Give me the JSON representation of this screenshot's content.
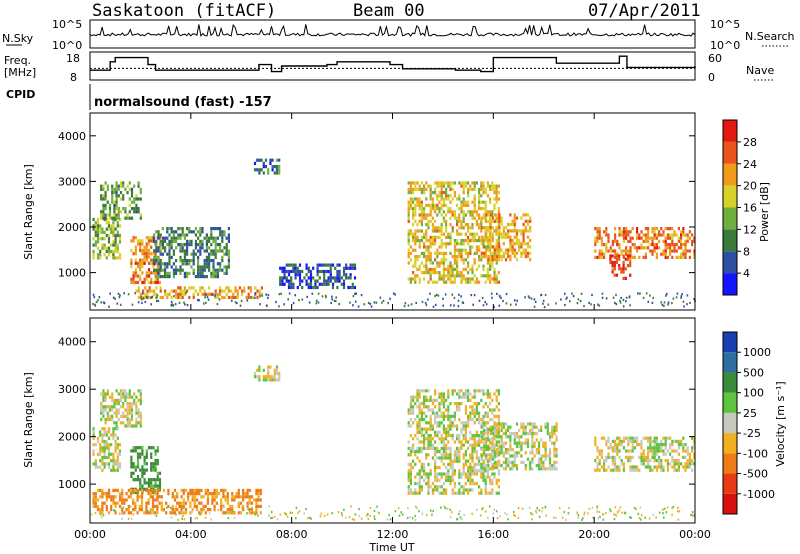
{
  "header": {
    "station": "Saskatoon (fitACF)",
    "beam": "Beam 00",
    "date": "07/Apr/2011"
  },
  "noise_panel": {
    "left_label": "N.Sky",
    "right_label": "N.Search",
    "left_ticks": [
      "10^5",
      "10^0"
    ],
    "right_ticks": [
      "10^5",
      "10^0"
    ]
  },
  "freq_panel": {
    "left_label_line1": "Freq.",
    "left_label_line2": "[MHz]",
    "left_ticks": [
      "18",
      "8"
    ],
    "right_label": "Nave",
    "right_ticks": [
      "60",
      "0"
    ]
  },
  "cpid_panel": {
    "label": "CPID",
    "text": "normalsound (fast) -157"
  },
  "power_panel": {
    "ylabel": "Slant Range [km]",
    "yticks": [
      "4000",
      "3000",
      "2000",
      "1000"
    ],
    "colorbar_label": "Power [dB]",
    "colorbar_ticks": [
      "28",
      "24",
      "20",
      "16",
      "12",
      "8",
      "4"
    ],
    "colors": [
      "#1414ff",
      "#2f4fa0",
      "#3b7a3a",
      "#6fae3f",
      "#d6d22a",
      "#f29a1c",
      "#e8541a",
      "#e31a10"
    ]
  },
  "velocity_panel": {
    "ylabel": "Slant Range [km]",
    "yticks": [
      "4000",
      "3000",
      "2000",
      "1000"
    ],
    "colorbar_label": "Velocity [m s⁻¹]",
    "colorbar_ticks": [
      "1000",
      "500",
      "100",
      "25",
      "-25",
      "-100",
      "-500",
      "-1000"
    ],
    "colors": [
      "#1a3fb0",
      "#2f6fa0",
      "#3b8a3a",
      "#5ec440",
      "#c8c8c0",
      "#f0b020",
      "#ef7a18",
      "#e83a14",
      "#d81010"
    ]
  },
  "xaxis": {
    "label": "Time UT",
    "ticks": [
      "00:00",
      "04:00",
      "08:00",
      "12:00",
      "16:00",
      "20:00",
      "00:00"
    ]
  },
  "chart_data": [
    {
      "type": "line",
      "title": "N.Sky / N.Search",
      "x_range_hours": [
        0,
        24
      ],
      "ylim_log10": [
        0,
        5
      ],
      "series": [
        {
          "name": "N.Sky",
          "description_values": "noise level near 10^1-10^2 with spikes toward 10^5"
        }
      ]
    },
    {
      "type": "line",
      "title": "Freq. [MHz] / Nave",
      "x_hours": [
        0.0,
        0.8,
        1.0,
        2.3,
        2.6,
        6.7,
        7.2,
        7.6,
        9.4,
        9.8,
        11.9,
        12.4,
        14.5,
        15.5,
        16.0,
        18.5,
        21.0,
        21.3,
        24.0
      ],
      "freq_mhz": [
        11.5,
        14.5,
        16.0,
        13.5,
        11.5,
        13.5,
        11.0,
        13.0,
        13.5,
        14.5,
        13.5,
        12.0,
        11.5,
        11.0,
        16.0,
        14.0,
        16.5,
        12.5,
        13.0
      ],
      "freq_ylim": [
        8,
        18
      ],
      "nave_ylim": [
        0,
        60
      ],
      "nave_level": 25
    },
    {
      "type": "heatmap",
      "title": "Power [dB]",
      "x_range_hours": [
        0,
        24
      ],
      "ylim_km": [
        180,
        4500
      ],
      "zlim_db": [
        0,
        30
      ],
      "regions": [
        {
          "t": [
            0.1,
            1.2
          ],
          "r": [
            1300,
            2200
          ],
          "db": 14
        },
        {
          "t": [
            0.4,
            2.0
          ],
          "r": [
            2200,
            3000
          ],
          "db": 12
        },
        {
          "t": [
            1.6,
            2.8
          ],
          "r": [
            800,
            1800
          ],
          "db": 22
        },
        {
          "t": [
            1.8,
            6.8
          ],
          "r": [
            450,
            700
          ],
          "db": 20
        },
        {
          "t": [
            2.5,
            5.5
          ],
          "r": [
            900,
            2000
          ],
          "db": 9
        },
        {
          "t": [
            6.5,
            7.5
          ],
          "r": [
            3200,
            3500
          ],
          "db": 8
        },
        {
          "t": [
            7.5,
            10.5
          ],
          "r": [
            700,
            1200
          ],
          "db": 6
        },
        {
          "t": [
            12.6,
            16.2
          ],
          "r": [
            800,
            3000
          ],
          "db": 18
        },
        {
          "t": [
            15.5,
            17.5
          ],
          "r": [
            1300,
            2300
          ],
          "db": 20
        },
        {
          "t": [
            20.0,
            24.0
          ],
          "r": [
            1300,
            2000
          ],
          "db": 22
        },
        {
          "t": [
            20.6,
            21.4
          ],
          "r": [
            900,
            1400
          ],
          "db": 26
        }
      ]
    },
    {
      "type": "heatmap",
      "title": "Velocity [m s^-1]",
      "x_range_hours": [
        0,
        24
      ],
      "ylim_km": [
        180,
        4500
      ],
      "zlim_ms": [
        -1000,
        1000
      ],
      "regions": [
        {
          "t": [
            0.1,
            1.2
          ],
          "r": [
            1300,
            2200
          ],
          "v": 0
        },
        {
          "t": [
            0.4,
            2.0
          ],
          "r": [
            2200,
            3000
          ],
          "v": 0
        },
        {
          "t": [
            1.6,
            2.8
          ],
          "r": [
            800,
            1800
          ],
          "v": 150
        },
        {
          "t": [
            0.1,
            6.8
          ],
          "r": [
            400,
            900
          ],
          "v": -120
        },
        {
          "t": [
            6.5,
            7.5
          ],
          "r": [
            3200,
            3500
          ],
          "v": 0
        },
        {
          "t": [
            12.6,
            16.2
          ],
          "r": [
            800,
            3000
          ],
          "v": 0
        },
        {
          "t": [
            15.5,
            18.5
          ],
          "r": [
            1300,
            2300
          ],
          "v": 0
        },
        {
          "t": [
            20.0,
            24.0
          ],
          "r": [
            1300,
            2000
          ],
          "v": 0
        }
      ]
    }
  ]
}
